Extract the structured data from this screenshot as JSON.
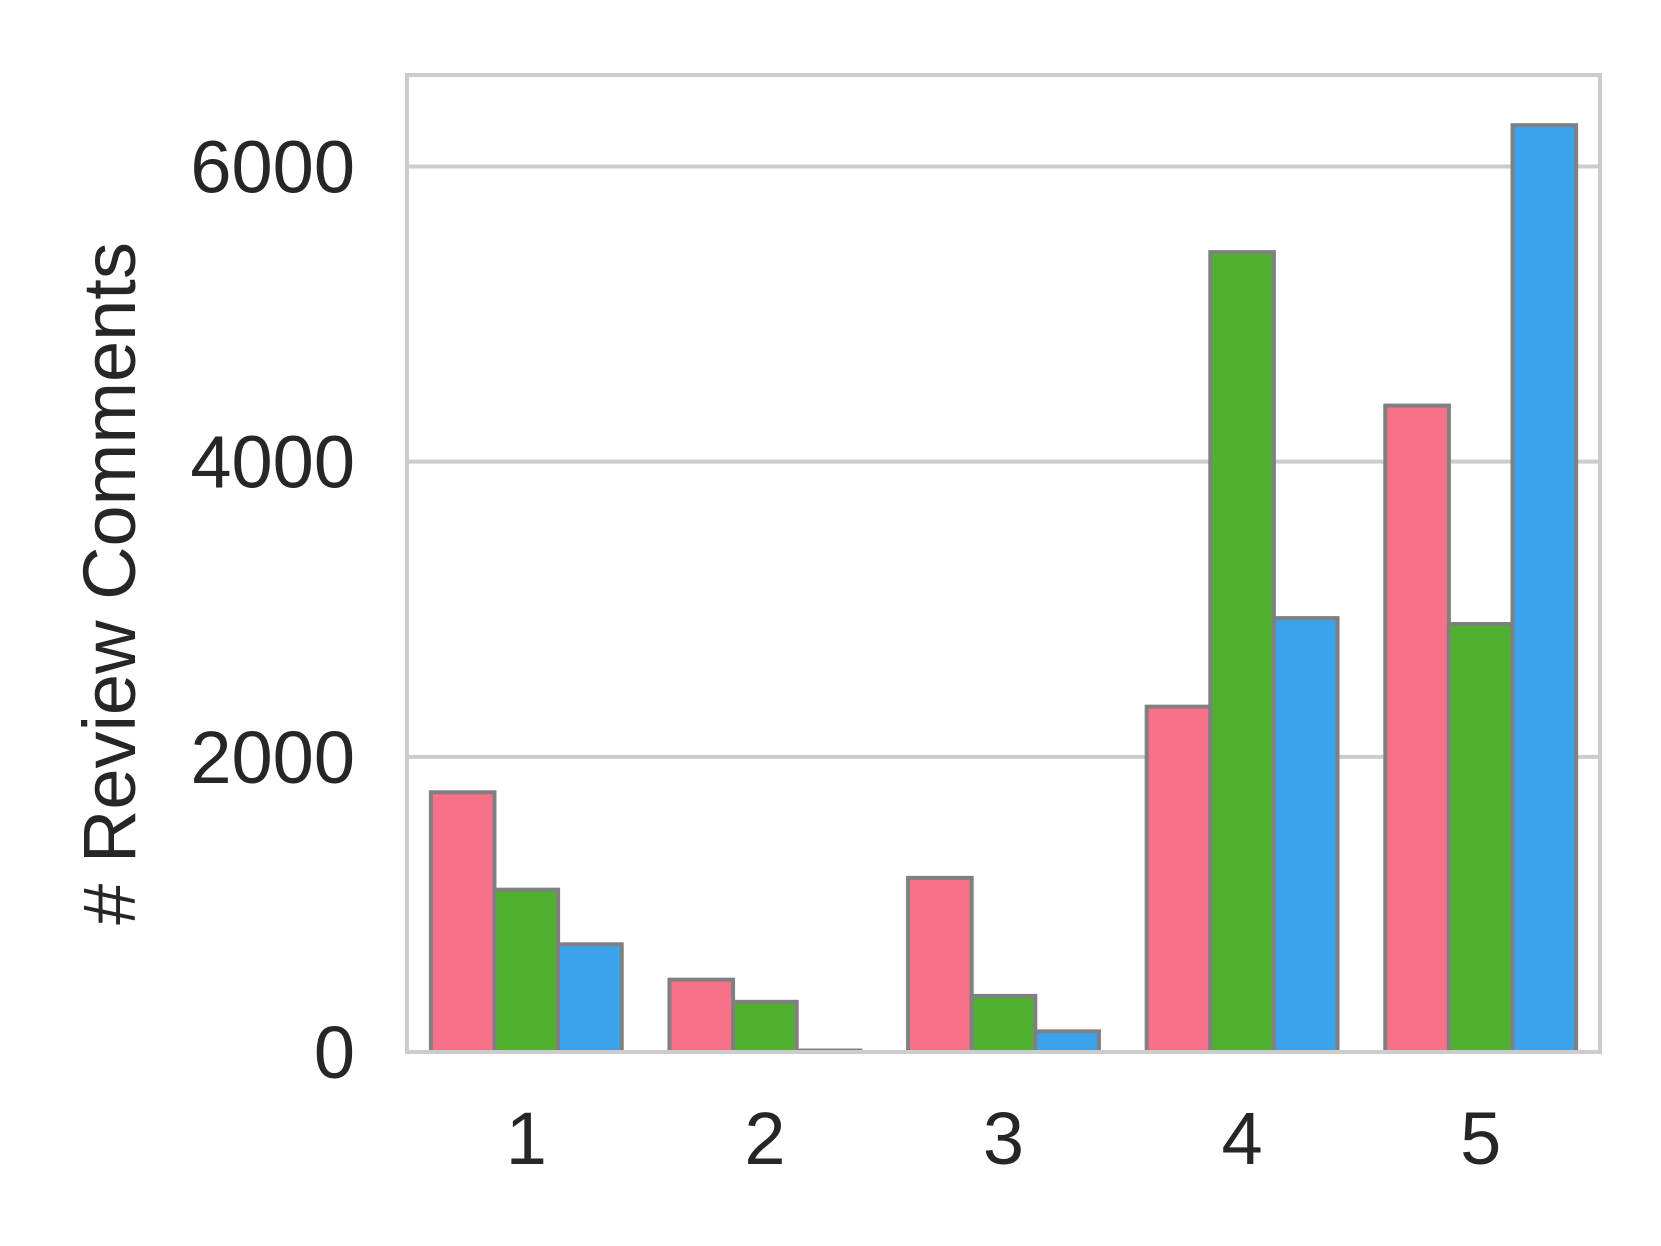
{
  "chart_data": {
    "type": "bar",
    "title": "",
    "xlabel": "",
    "ylabel": "# Review Comments",
    "categories": [
      "1",
      "2",
      "3",
      "4",
      "5"
    ],
    "y_ticks": [
      "0",
      "2000",
      "4000",
      "6000"
    ],
    "ylim": [
      0,
      6620
    ],
    "grid": true,
    "legend": "none",
    "series": [
      {
        "color": "#f77189",
        "values": [
          1760,
          490,
          1180,
          2340,
          4380
        ]
      },
      {
        "color": "#50b131",
        "values": [
          1100,
          340,
          380,
          5420,
          2900
        ]
      },
      {
        "color": "#3ba3ec",
        "values": [
          730,
          10,
          140,
          2940,
          6280
        ]
      }
    ],
    "bar_edge_color": "#808080",
    "grid_color": "#cccccc"
  }
}
